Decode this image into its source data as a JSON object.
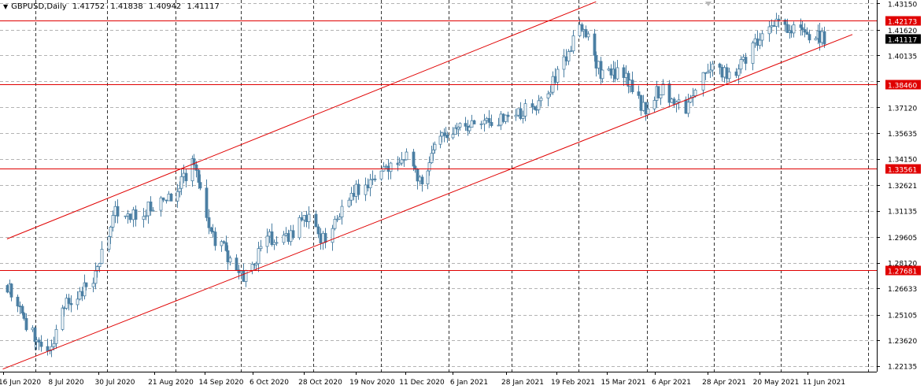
{
  "header": {
    "symbol": "GBPUSD,Daily",
    "open": "1.41752",
    "high": "1.41838",
    "low": "1.40942",
    "close": "1.41117"
  },
  "colors": {
    "background": "#ffffff",
    "candle": "#4b7fa3",
    "levels": "#e00000",
    "grid": "#9a9a9a",
    "current_price_tag": "#000000"
  },
  "chart_data": {
    "type": "candlestick",
    "symbol": "GBPUSD",
    "timeframe": "Daily",
    "ylim": [
      1.218,
      1.4335
    ],
    "y_ticks": [
      "1.43150",
      "1.41620",
      "1.40135",
      "1.38650",
      "1.37120",
      "1.35635",
      "1.34150",
      "1.32621",
      "1.31135",
      "1.29605",
      "1.28120",
      "1.26633",
      "1.25105",
      "1.23620",
      "1.22135"
    ],
    "x_tick_labels": [
      "16 Jun 2020",
      "8 Jul 2020",
      "30 Jul 2020",
      "21 Aug 2020",
      "14 Sep 2020",
      "6 Oct 2020",
      "28 Oct 2020",
      "19 Nov 2020",
      "11 Dec 2020",
      "6 Jan 2021",
      "28 Jan 2021",
      "19 Feb 2021",
      "15 Mar 2021",
      "6 Apr 2021",
      "28 Apr 2021",
      "20 May 2021",
      "11 Jun 2021"
    ],
    "x_dates": [
      "2020-06-16",
      "2020-07-08",
      "2020-07-30",
      "2020-08-21",
      "2020-09-14",
      "2020-10-06",
      "2020-10-28",
      "2020-11-19",
      "2020-12-11",
      "2021-01-06",
      "2021-01-28",
      "2021-02-19",
      "2021-03-15",
      "2021-04-06",
      "2021-04-28",
      "2021-05-20",
      "2021-06-11"
    ],
    "horizontal_levels": [
      {
        "value": 1.42173,
        "label": "1.42173"
      },
      {
        "value": 1.3846,
        "label": "1.38460"
      },
      {
        "value": 1.33561,
        "label": "1.33561"
      },
      {
        "value": 1.27681,
        "label": "1.27681"
      }
    ],
    "current_price": {
      "value": 1.41117,
      "label": "1.41117"
    },
    "channel_lines": [
      {
        "from": {
          "date": "2020-06-10",
          "value": 1.295
        },
        "to": {
          "date": "2021-03-02",
          "value": 1.4325
        }
      },
      {
        "from": {
          "date": "2020-06-08",
          "value": 1.2195
        },
        "to": {
          "date": "2021-06-24",
          "value": 1.4135
        }
      }
    ],
    "price_path": [
      {
        "date": "2020-06-10",
        "value": 1.268
      },
      {
        "date": "2020-06-18",
        "value": 1.247
      },
      {
        "date": "2020-06-29",
        "value": 1.228
      },
      {
        "date": "2020-07-08",
        "value": 1.258
      },
      {
        "date": "2020-07-20",
        "value": 1.272
      },
      {
        "date": "2020-07-30",
        "value": 1.31
      },
      {
        "date": "2020-08-07",
        "value": 1.308
      },
      {
        "date": "2020-08-21",
        "value": 1.32
      },
      {
        "date": "2020-09-01",
        "value": 1.34
      },
      {
        "date": "2020-09-08",
        "value": 1.3
      },
      {
        "date": "2020-09-17",
        "value": 1.285
      },
      {
        "date": "2020-09-24",
        "value": 1.274
      },
      {
        "date": "2020-10-06",
        "value": 1.295
      },
      {
        "date": "2020-10-14",
        "value": 1.295
      },
      {
        "date": "2020-10-21",
        "value": 1.31
      },
      {
        "date": "2020-10-30",
        "value": 1.292
      },
      {
        "date": "2020-11-09",
        "value": 1.32
      },
      {
        "date": "2020-11-23",
        "value": 1.332
      },
      {
        "date": "2020-12-04",
        "value": 1.345
      },
      {
        "date": "2020-12-11",
        "value": 1.324
      },
      {
        "date": "2020-12-18",
        "value": 1.352
      },
      {
        "date": "2021-01-06",
        "value": 1.36
      },
      {
        "date": "2021-01-18",
        "value": 1.365
      },
      {
        "date": "2021-02-01",
        "value": 1.37
      },
      {
        "date": "2021-02-10",
        "value": 1.385
      },
      {
        "date": "2021-02-19",
        "value": 1.41
      },
      {
        "date": "2021-02-24",
        "value": 1.418
      },
      {
        "date": "2021-03-04",
        "value": 1.39
      },
      {
        "date": "2021-03-15",
        "value": 1.39
      },
      {
        "date": "2021-03-24",
        "value": 1.37
      },
      {
        "date": "2021-04-01",
        "value": 1.382
      },
      {
        "date": "2021-04-12",
        "value": 1.372
      },
      {
        "date": "2021-04-20",
        "value": 1.395
      },
      {
        "date": "2021-04-28",
        "value": 1.39
      },
      {
        "date": "2021-05-05",
        "value": 1.395
      },
      {
        "date": "2021-05-12",
        "value": 1.41
      },
      {
        "date": "2021-05-20",
        "value": 1.418
      },
      {
        "date": "2021-05-27",
        "value": 1.416
      },
      {
        "date": "2021-06-03",
        "value": 1.415
      },
      {
        "date": "2021-06-11",
        "value": 1.411
      }
    ]
  }
}
